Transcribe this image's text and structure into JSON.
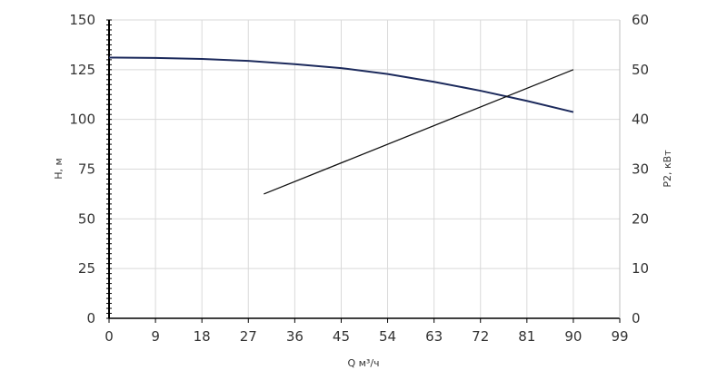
{
  "chart_data": {
    "type": "line",
    "title": "",
    "xlabel": "Q м³/ч",
    "ylabel_left": "H, м",
    "ylabel_right": "P2, кВт",
    "xlim": [
      0,
      99
    ],
    "ylim_left": [
      0,
      150
    ],
    "ylim_right": [
      0,
      60
    ],
    "x_ticks": [
      0,
      9,
      18,
      27,
      36,
      45,
      54,
      63,
      72,
      81,
      90,
      99
    ],
    "y_ticks_left": [
      0,
      25,
      50,
      75,
      100,
      125,
      150
    ],
    "y_ticks_right": [
      0,
      10,
      20,
      30,
      40,
      50,
      60
    ],
    "grid": true,
    "legend": "none",
    "series": [
      {
        "axis": "left",
        "color": "#1c2a5c",
        "x": [
          0,
          9,
          18,
          27,
          36,
          45,
          54,
          63,
          72,
          81,
          90
        ],
        "y": [
          131.1,
          130.9,
          130.4,
          129.4,
          127.8,
          125.8,
          122.8,
          118.9,
          114.4,
          109.3,
          103.7
        ]
      },
      {
        "axis": "right",
        "color": "#111111",
        "x": [
          30,
          90
        ],
        "y": [
          25,
          50
        ]
      }
    ]
  }
}
